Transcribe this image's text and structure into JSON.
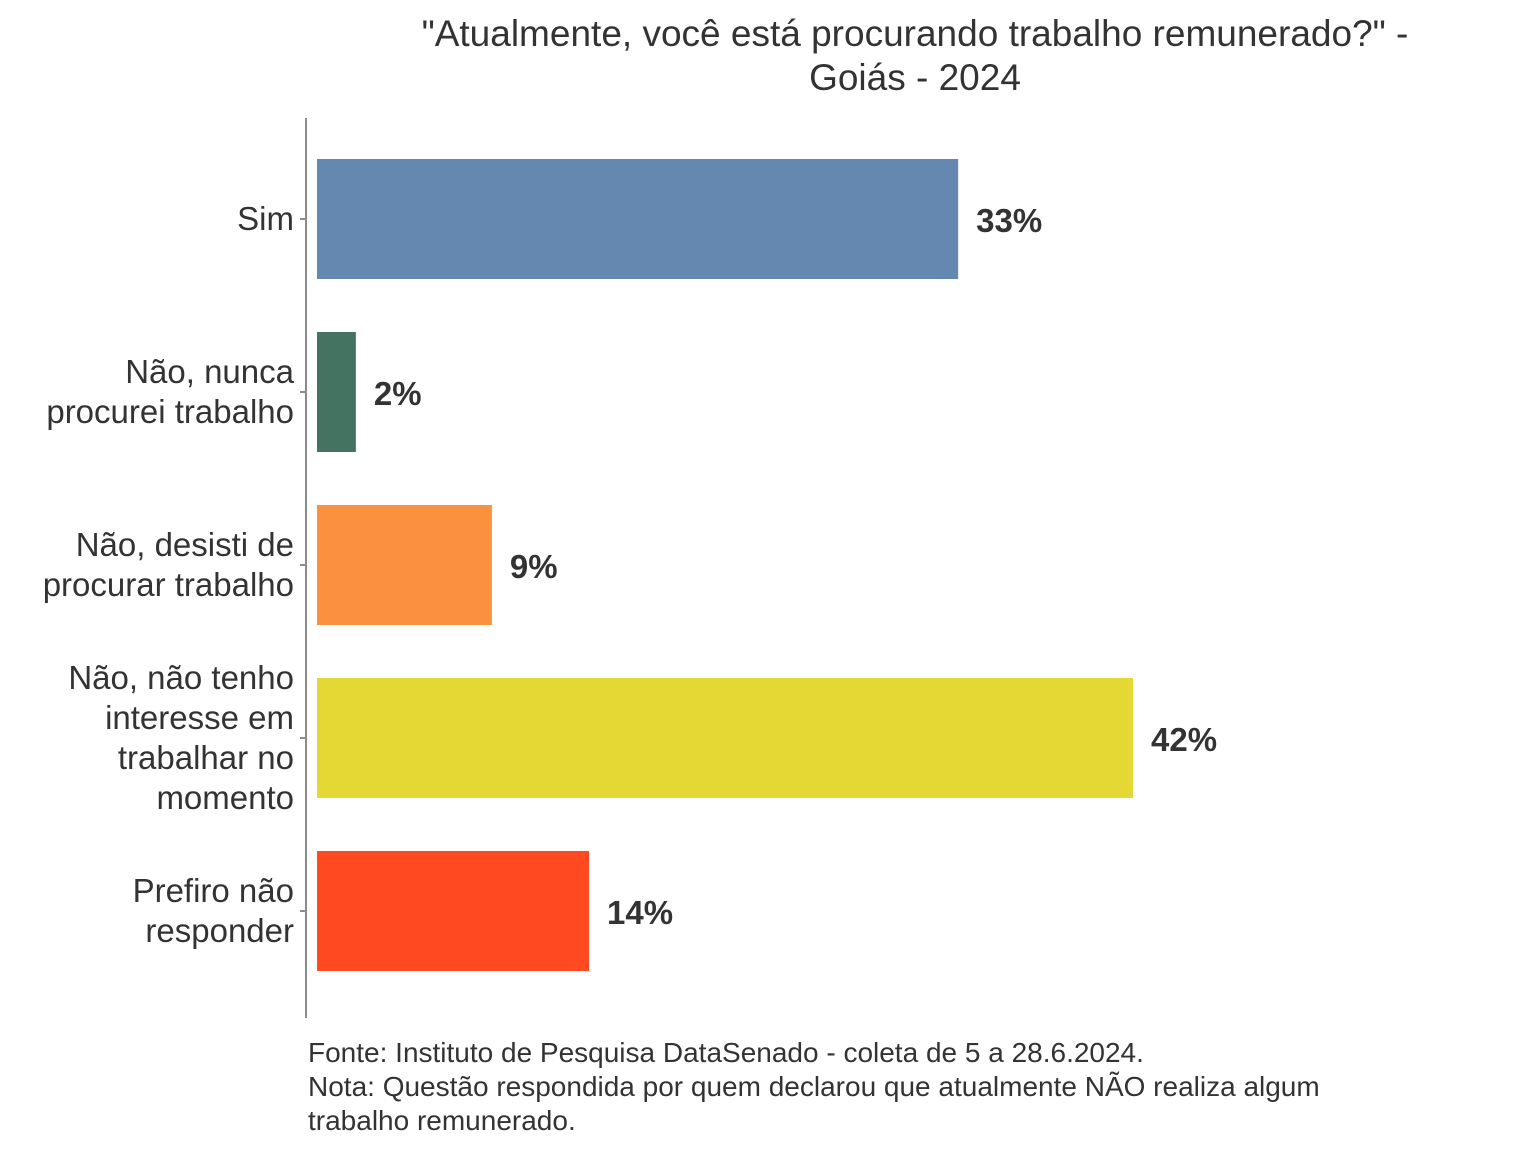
{
  "chart_data": {
    "type": "bar",
    "orientation": "horizontal",
    "title_lines": [
      "\"Atualmente, você está procurando trabalho remunerado?\" -",
      "Goiás - 2024"
    ],
    "categories": [
      {
        "label_lines": [
          "Sim"
        ]
      },
      {
        "label_lines": [
          "Não, nunca",
          "procurei trabalho"
        ]
      },
      {
        "label_lines": [
          "Não, desisti de",
          "procurar trabalho"
        ]
      },
      {
        "label_lines": [
          "Não, não tenho",
          "interesse em",
          "trabalhar no",
          "momento"
        ]
      },
      {
        "label_lines": [
          "Prefiro não",
          "responder"
        ]
      }
    ],
    "values": [
      33,
      2,
      9,
      42,
      14
    ],
    "value_labels": [
      "33%",
      "2%",
      "9%",
      "42%",
      "14%"
    ],
    "colors": [
      "#6488AF",
      "#447361",
      "#FB913E",
      "#E5D835",
      "#FF4A21"
    ],
    "xlim": [
      0,
      45
    ],
    "xlabel": "",
    "ylabel": "",
    "legend": "none",
    "grid": false
  },
  "footer": {
    "source": "Fonte: Instituto de Pesquisa DataSenado - coleta de 5 a 28.6.2024.",
    "note_line1": "Nota: Questão respondida por quem declarou que atualmente NÃO realiza algum",
    "note_line2": "trabalho remunerado."
  }
}
